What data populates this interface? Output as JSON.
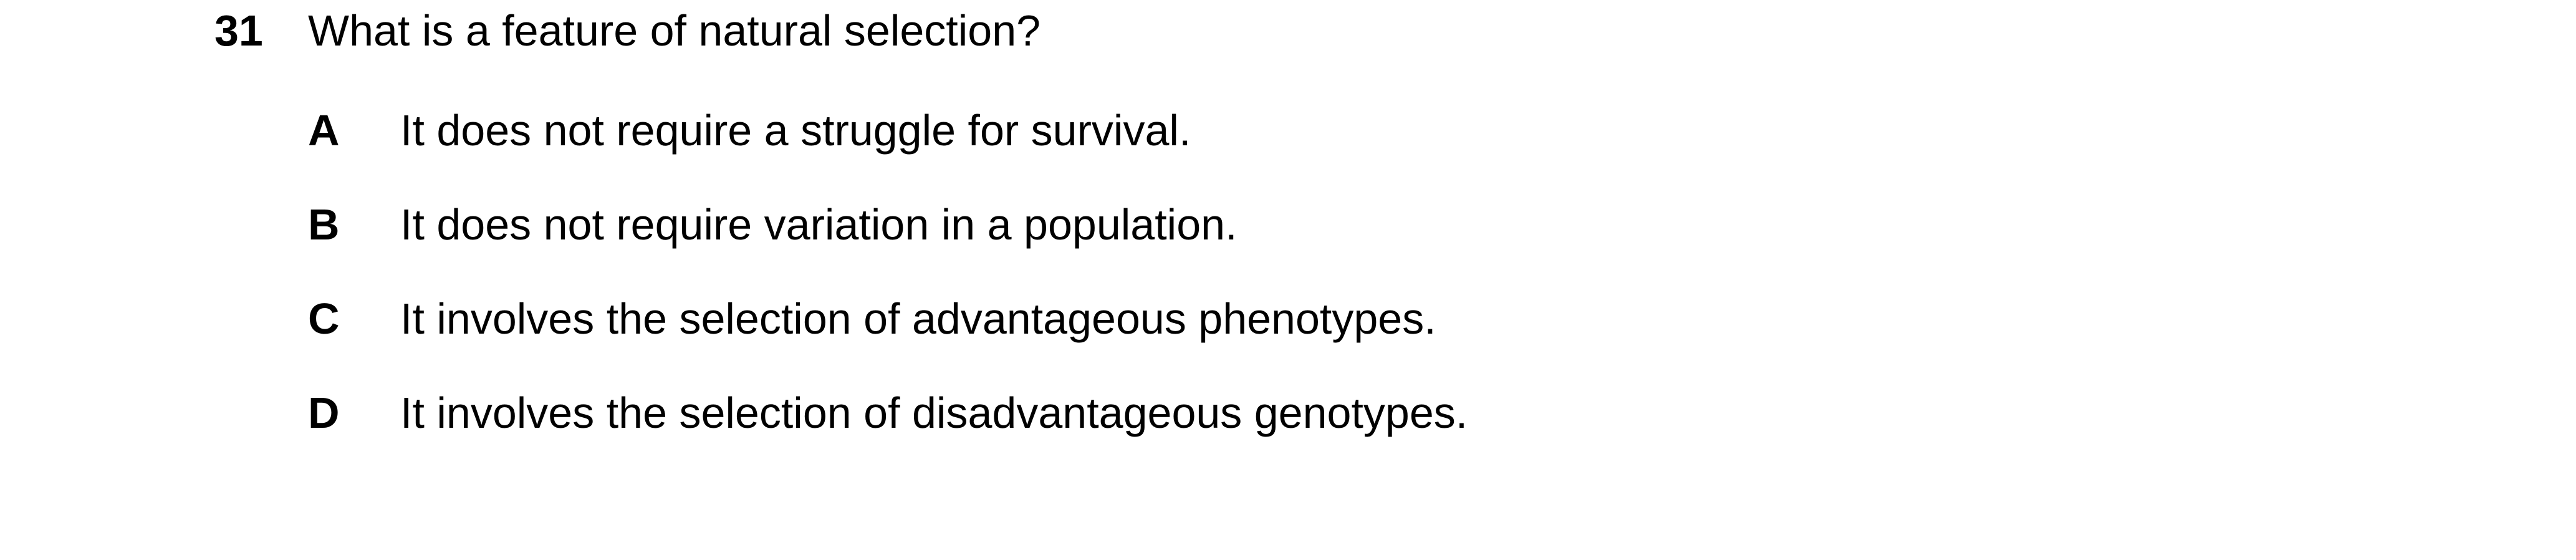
{
  "question": {
    "number": "31",
    "text": "What is a feature of natural selection?"
  },
  "options": [
    {
      "letter": "A",
      "text": "It does not require a struggle for survival."
    },
    {
      "letter": "B",
      "text": "It does not require variation in a population."
    },
    {
      "letter": "C",
      "text": "It involves the selection of advantageous phenotypes."
    },
    {
      "letter": "D",
      "text": "It involves the selection of disadvantageous genotypes."
    }
  ]
}
